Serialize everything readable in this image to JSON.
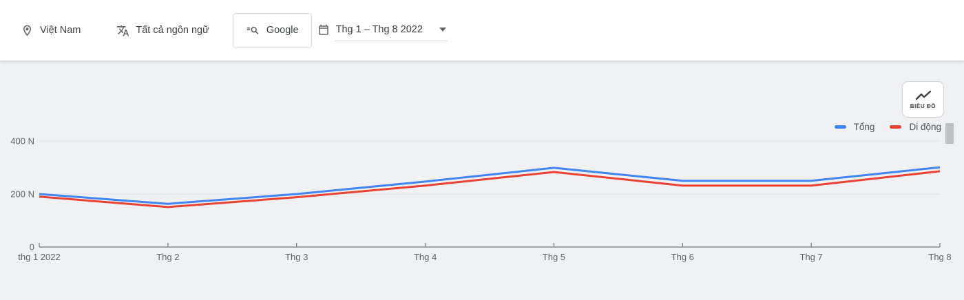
{
  "toolbar": {
    "location": "Việt Nam",
    "language": "Tất cả ngôn ngữ",
    "source": "Google",
    "date_range": "Thg 1 – Thg 8 2022"
  },
  "chart_controls": {
    "chart_type_button": "BIỂU ĐỒ"
  },
  "colors": {
    "total_line": "#4285f4",
    "mobile_line": "#ea4335",
    "chart_background": "#eff1f3",
    "gridline": "#e2e4e7",
    "axis_line": "#85898e",
    "axis_text": "#5f6368"
  },
  "chart_data": {
    "type": "line",
    "title": "",
    "categories": [
      "thg 1 2022",
      "Thg 2",
      "Thg 3",
      "Thg 4",
      "Thg 5",
      "Thg 6",
      "Thg 7",
      "Thg 8"
    ],
    "series": [
      {
        "name": "Tổng",
        "color": "#4285f4",
        "values": [
          200,
          163,
          200,
          247,
          299,
          250,
          250,
          301
        ]
      },
      {
        "name": "Di động",
        "color": "#ea4335",
        "values": [
          190,
          151,
          188,
          232,
          283,
          232,
          232,
          286
        ]
      }
    ],
    "unit_suffix": "N",
    "y_ticks": [
      {
        "value": 0,
        "label": "0"
      },
      {
        "value": 200,
        "label": "200 N"
      },
      {
        "value": 400,
        "label": "400 N"
      }
    ],
    "ylim": [
      0,
      430
    ],
    "grid": true,
    "legend_position": "top-right"
  }
}
